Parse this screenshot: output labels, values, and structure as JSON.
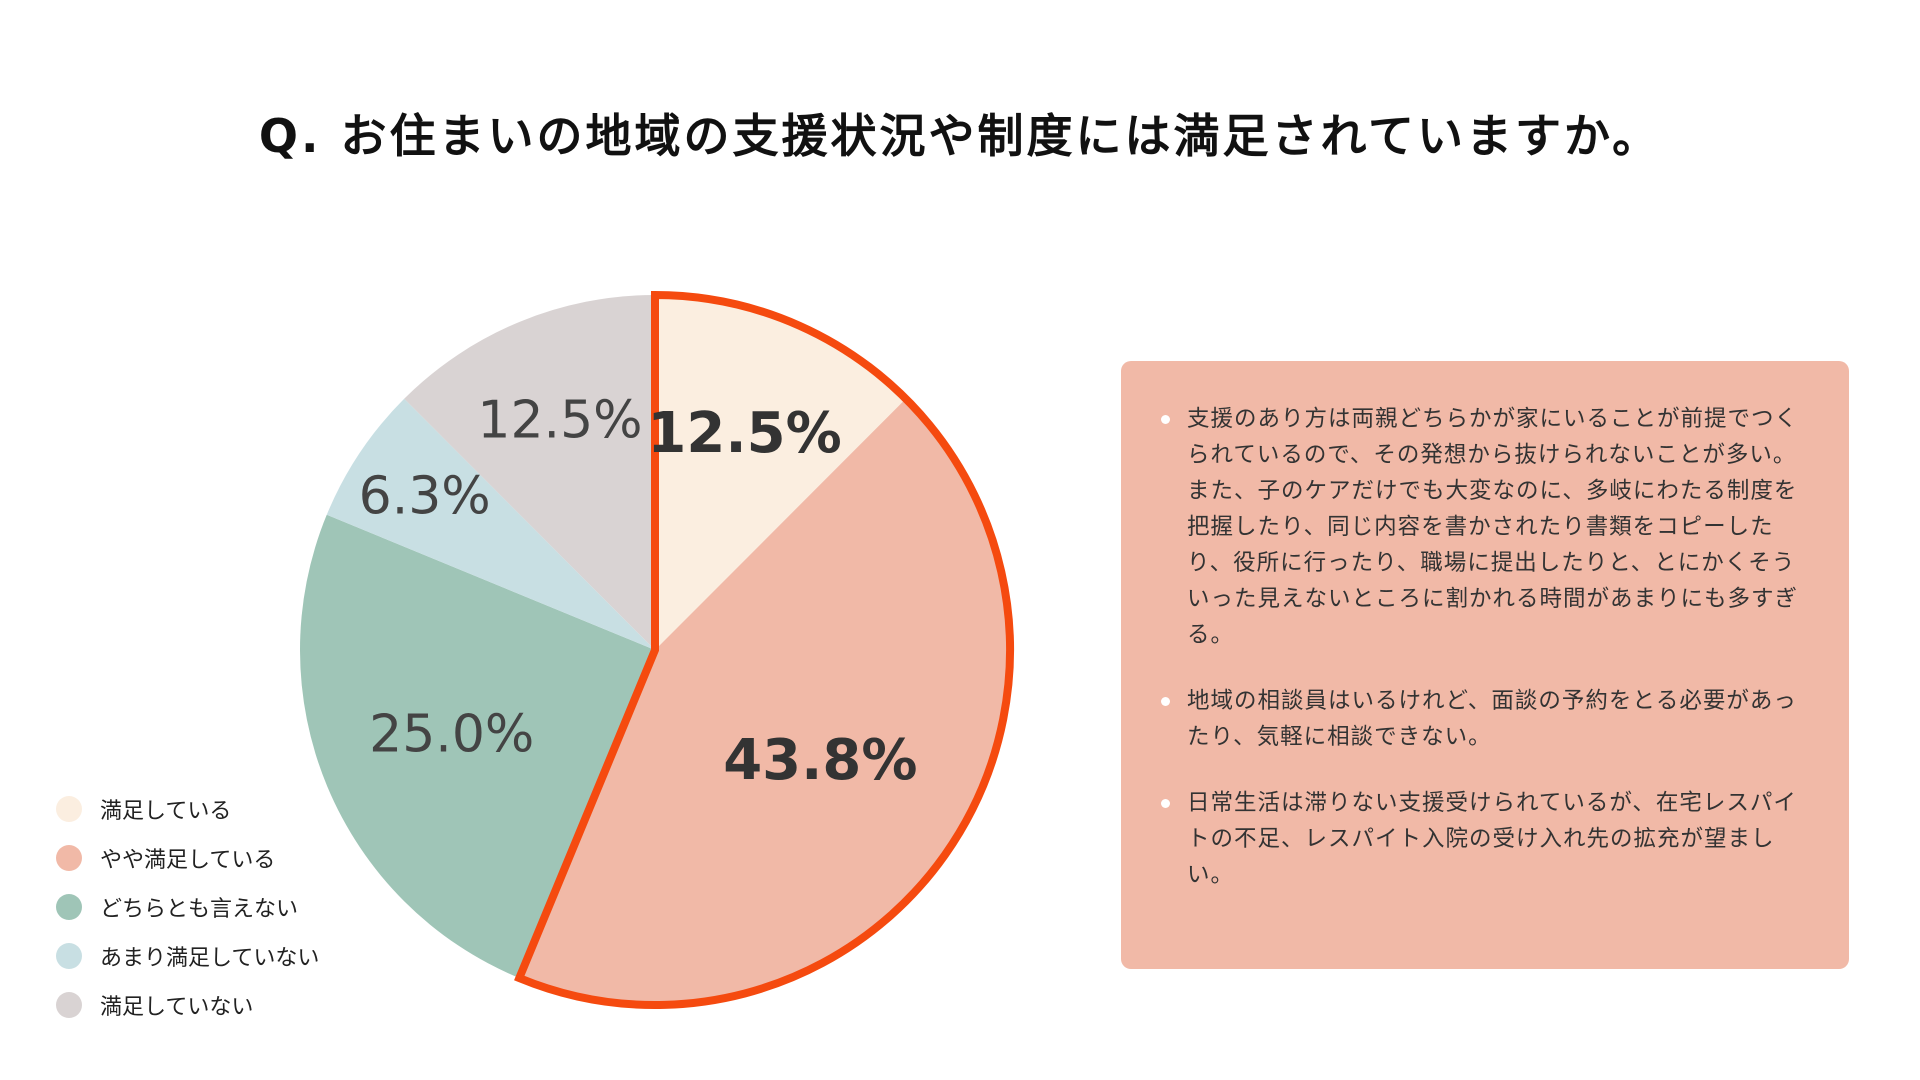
{
  "title": "Q. お住まいの地域の支援状況や制度には満足されていますか。",
  "chart_data": {
    "type": "pie",
    "categories": [
      "満足している",
      "やや満足している",
      "どちらとも言えない",
      "あまり満足していない",
      "満足していない"
    ],
    "values": [
      12.5,
      43.8,
      25.0,
      6.3,
      12.5
    ],
    "labels": [
      "12.5%",
      "43.8%",
      "25.0%",
      "6.3%",
      "12.5%"
    ],
    "colors": [
      "#fbeee0",
      "#f1b9a7",
      "#9fc5b7",
      "#c8dfe3",
      "#d9d3d3"
    ],
    "highlight_color": "#f54a0f",
    "highlighted": [
      0,
      1
    ],
    "bold_labels": [
      0,
      1
    ],
    "start_angle": "12 o'clock",
    "direction": "clockwise",
    "legend_position": "bottom-left"
  },
  "comments": [
    "支援のあり方は両親どちらかが家にいることが前提でつくられているので、その発想から抜けられないことが多い。\nまた、子のケアだけでも大変なのに、多岐にわたる制度を把握したり、同じ内容を書かされたり書類をコピーしたり、役所に行ったり、職場に提出したりと、とにかくそういった見えないところに割かれる時間があまりにも多すぎる。",
    "地域の相談員はいるけれど、面談の予約をとる必要があったり、気軽に相談できない。",
    "日常生活は滞りない支援受けられているが、在宅レスパイトの不足、レスパイト入院の受け入れ先の拡充が望ましい。"
  ]
}
